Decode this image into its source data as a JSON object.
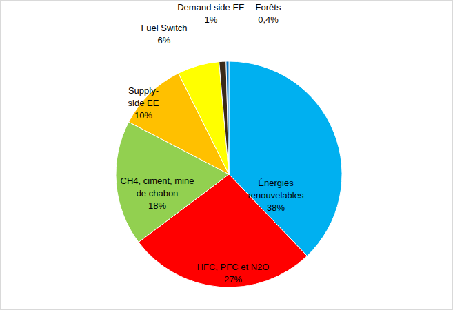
{
  "chart_data": {
    "type": "pie",
    "categories": [
      "Énergies renouvelables",
      "HFC, PFC et N2O",
      "CH4, ciment, mine de chabon",
      "Supply-side EE",
      "Fuel Switch",
      "Demand side EE",
      "Forêts"
    ],
    "values": [
      38,
      27,
      18,
      10,
      6,
      1,
      0.4
    ],
    "value_labels": [
      "38%",
      "27%",
      "18%",
      "10%",
      "6%",
      "1%",
      "0,4%"
    ],
    "colors": [
      "#00b0f0",
      "#ff0000",
      "#92d050",
      "#ffc000",
      "#ffff00",
      "#3b2a1a",
      "#0070c0"
    ],
    "data_labels": true
  }
}
